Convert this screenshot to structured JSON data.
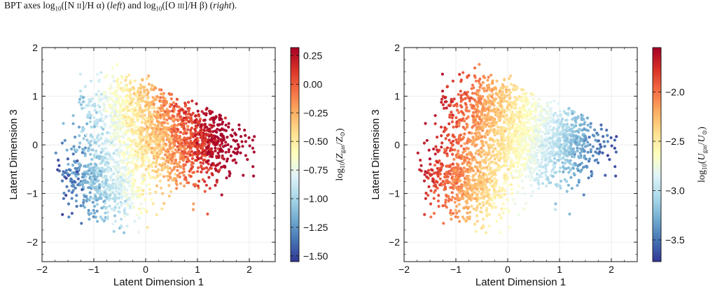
{
  "caption": {
    "text_a": "BPT axes log",
    "sub_a": "10",
    "text_b": "([N ",
    "smallcaps_b": "II",
    "text_c": "]/H α) (",
    "italic_left": "left",
    "text_d": ") and log",
    "sub_b": "10",
    "text_e": "([O ",
    "smallcaps_e": "III",
    "text_f": "]/H β) (",
    "italic_right": "right",
    "text_g": ")."
  },
  "colormap": {
    "name": "RdYlBu_r",
    "stops": [
      "#313695",
      "#4575b4",
      "#74add1",
      "#abd9e9",
      "#e0f3f8",
      "#ffffbf",
      "#fee090",
      "#fdae61",
      "#f46d43",
      "#d73027",
      "#a50026"
    ]
  },
  "chart_data": [
    {
      "type": "scatter",
      "xlabel": "Latent Dimension 1",
      "ylabel": "Latent Dimension 3",
      "xlim": [
        -2,
        2.5
      ],
      "ylim": [
        -2.4,
        2.0
      ],
      "xticks": [
        -2,
        -1,
        0,
        1,
        2
      ],
      "yticks": [
        -2,
        -1,
        0,
        1,
        2
      ],
      "grid": true,
      "color_trend": "color increases toward positive Latent Dimension 1 and slightly with Latent Dimension 3; lowest values in the lower-left cluster",
      "colorbar": {
        "label": "log10(Z_gas/Z_⊙)",
        "label_parts": {
          "pre": "log",
          "sub10": "10",
          "open": "(",
          "var1": "Z",
          "var1_sub": "gas",
          "slash": "/",
          "var2": "Z",
          "var2_sub": "⊙",
          "close": ")"
        },
        "range": [
          -1.55,
          0.32
        ],
        "ticks": [
          0.25,
          0.0,
          -0.25,
          -0.5,
          -0.75,
          -1.0,
          -1.25,
          -1.5
        ],
        "tick_labels": [
          "0.25",
          "0.00",
          "−0.25",
          "−0.50",
          "−0.75",
          "−1.00",
          "−1.25",
          "−1.50"
        ]
      }
    },
    {
      "type": "scatter",
      "xlabel": "Latent Dimension 1",
      "ylabel": "Latent Dimension 3",
      "xlim": [
        -2,
        2.5
      ],
      "ylim": [
        -2.4,
        2.0
      ],
      "xticks": [
        -2,
        -1,
        0,
        1,
        2
      ],
      "yticks": [
        -2,
        -1,
        0,
        1,
        2
      ],
      "grid": true,
      "color_trend": "color decreases toward positive Latent Dimension 1; highest values on the left side",
      "colorbar": {
        "label": "log10(U_gas/U_⊙)",
        "label_parts": {
          "pre": "log",
          "sub10": "10",
          "open": "(",
          "var1": "U",
          "var1_sub": "gas",
          "slash": "/",
          "var2": "U",
          "var2_sub": "⊙",
          "close": ")"
        },
        "range": [
          -3.72,
          -1.55
        ],
        "ticks": [
          -2.0,
          -2.5,
          -3.0,
          -3.5
        ],
        "tick_labels": [
          "−2.0",
          "−2.5",
          "−3.0",
          "−3.5"
        ]
      }
    }
  ]
}
